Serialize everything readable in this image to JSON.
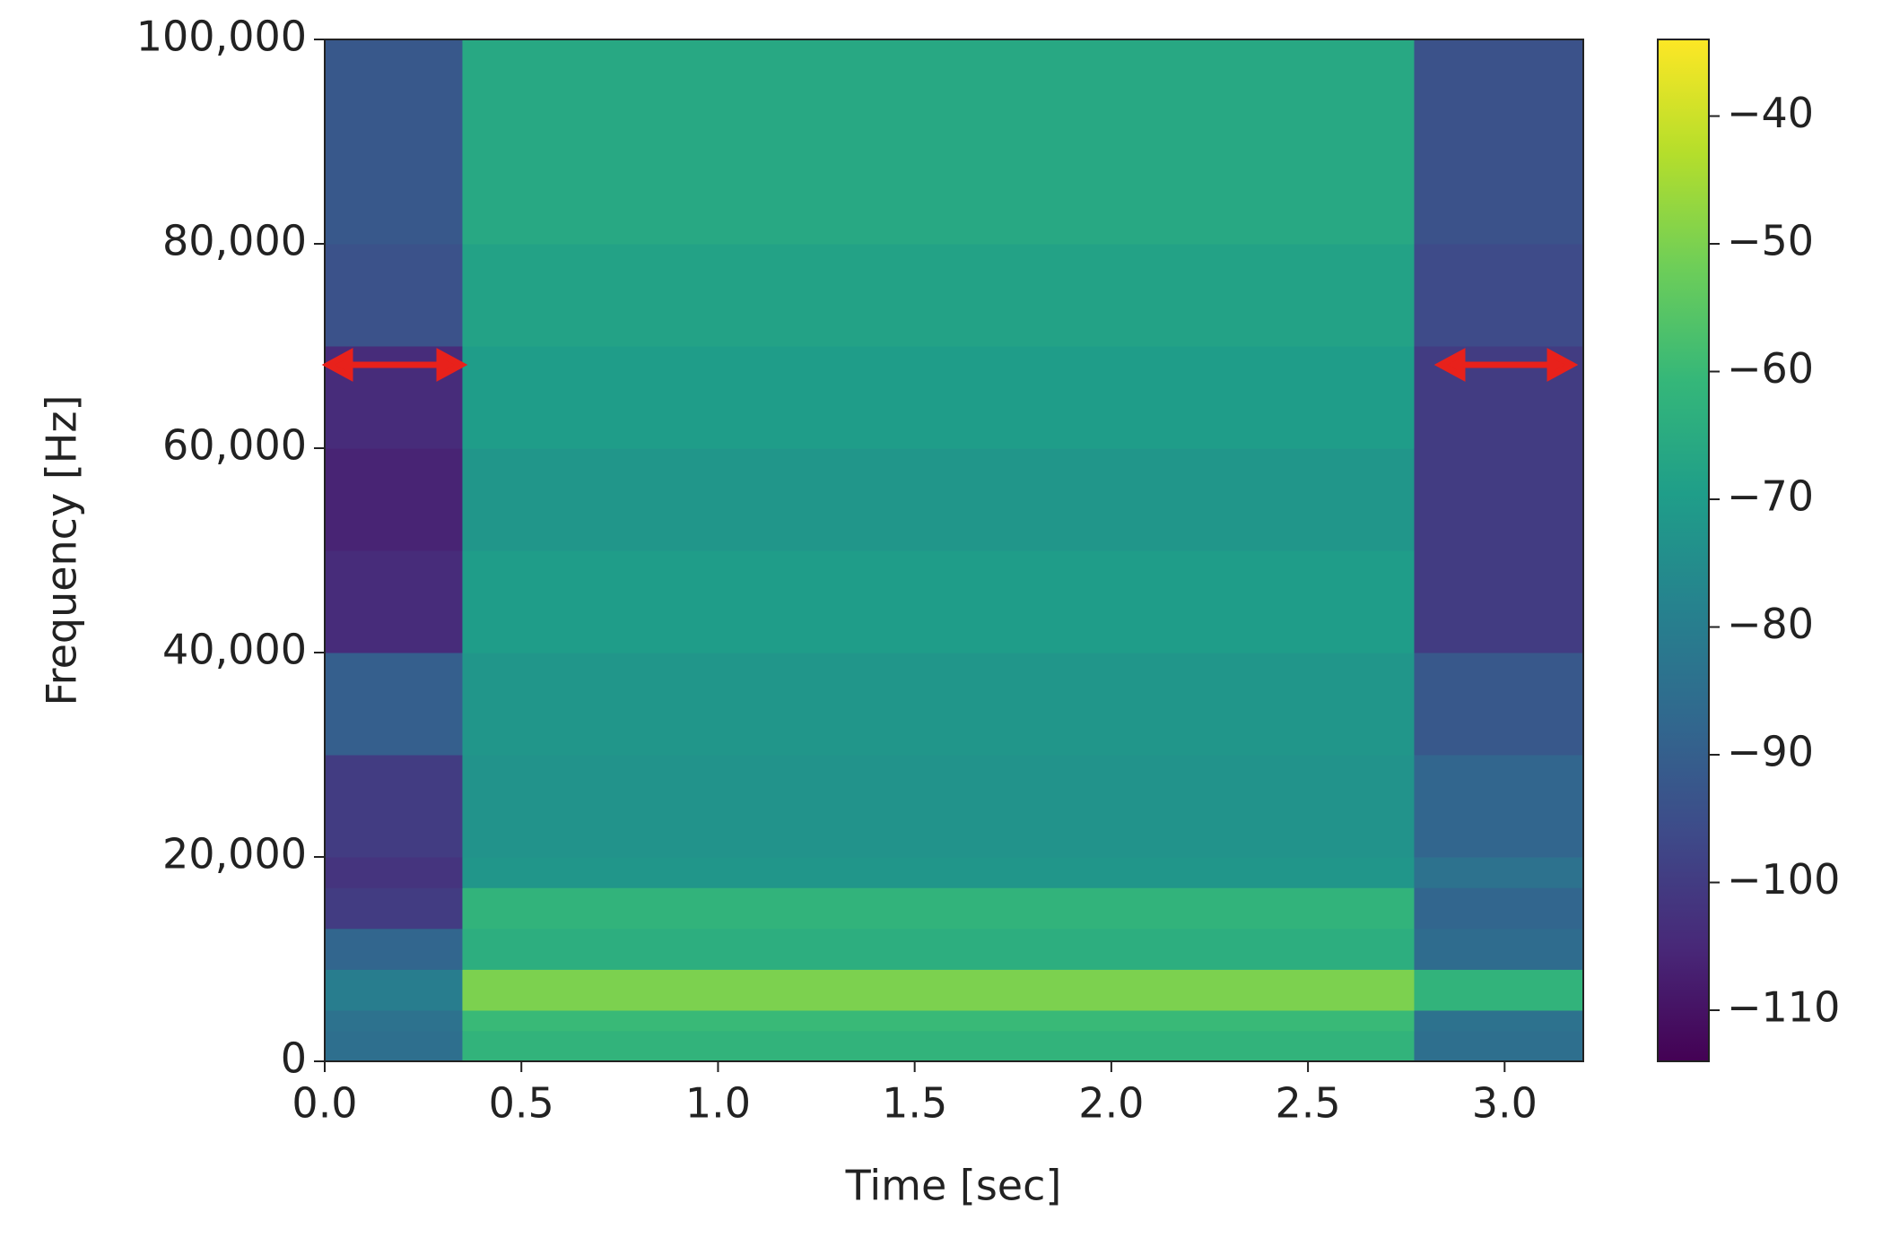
{
  "chart_data": {
    "type": "heatmap",
    "x_label": "Time [sec]",
    "y_label": "Frequency [Hz]",
    "colormap": "viridis",
    "x": [
      0,
      0.35,
      2.77,
      3.2
    ],
    "y": [
      0,
      3000,
      5000,
      9000,
      13000,
      17000,
      20000,
      30000,
      40000,
      50000,
      60000,
      70000,
      80000,
      90000,
      100000
    ],
    "z": [
      [
        -85,
        -62,
        -85
      ],
      [
        -84,
        -60,
        -84
      ],
      [
        -80,
        -50,
        -62
      ],
      [
        -88,
        -64,
        -86
      ],
      [
        -100,
        -62,
        -88
      ],
      [
        -102,
        -72,
        -84
      ],
      [
        -100,
        -73,
        -88
      ],
      [
        -90,
        -72,
        -92
      ],
      [
        -104,
        -70,
        -100
      ],
      [
        -106,
        -72,
        -100
      ],
      [
        -104,
        -70,
        -100
      ],
      [
        -94,
        -68,
        -96
      ],
      [
        -92,
        -66,
        -94
      ],
      [
        -92,
        -66,
        -94
      ]
    ],
    "xlim": [
      0,
      3.2
    ],
    "ylim": [
      0,
      100000
    ],
    "xticks": [
      {
        "value": 0,
        "label": "0.0"
      },
      0.5,
      {
        "value": 1,
        "label": "1.0"
      },
      1.5,
      {
        "value": 2,
        "label": "2.0"
      },
      2.5,
      {
        "value": 3,
        "label": "3.0"
      }
    ],
    "yticks": [
      0,
      {
        "value": 20000,
        "label": "20,000"
      },
      {
        "value": 40000,
        "label": "40,000"
      },
      {
        "value": 60000,
        "label": "60,000"
      },
      {
        "value": 80000,
        "label": "80,000"
      },
      {
        "value": 100000,
        "label": "100,000"
      }
    ],
    "clim": [
      -114,
      -34
    ],
    "cticks": [
      {
        "value": -40,
        "label": "−40"
      },
      {
        "value": -50,
        "label": "−50"
      },
      {
        "value": -60,
        "label": "−60"
      },
      {
        "value": -70,
        "label": "−70"
      },
      {
        "value": -80,
        "label": "−80"
      },
      {
        "value": -90,
        "label": "−90"
      },
      {
        "value": -100,
        "label": "−100"
      },
      {
        "value": -110,
        "label": "−110"
      }
    ]
  }
}
